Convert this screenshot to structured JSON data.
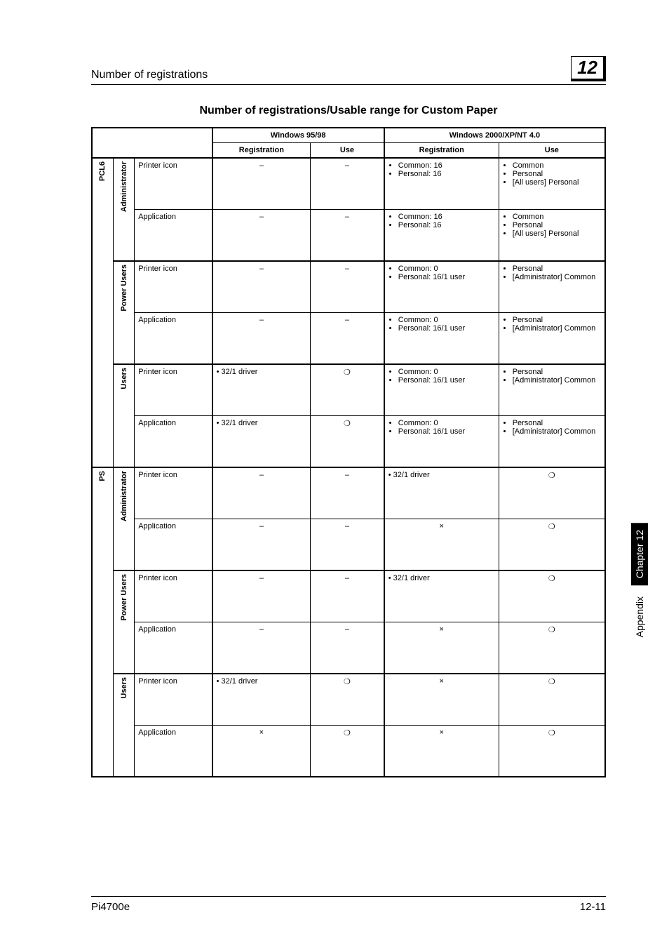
{
  "header": {
    "title": "Number of registrations",
    "badge": "12"
  },
  "section_title": "Number of registrations/Usable range for Custom Paper",
  "columns": {
    "win95": "Windows 95/98",
    "win2000": "Windows 2000/XP/NT 4.0",
    "registration": "Registration",
    "use": "Use"
  },
  "drivers": {
    "pcl6": "PCL6",
    "ps": "PS"
  },
  "roles": {
    "admin": "Administrator",
    "power": "Power Users",
    "users": "Users"
  },
  "items": {
    "printer_icon": "Printer icon",
    "application": "Application"
  },
  "marks": {
    "dash": "–",
    "circle": "❍",
    "cross": "×",
    "dot321": "• 32/1 driver"
  },
  "reg": {
    "common16_personal16": [
      "Common: 16",
      "Personal: 16"
    ],
    "common0_personal_161user": [
      "Common: 0",
      "Personal: 16/1 user"
    ],
    "driver321": "• 32/1 driver"
  },
  "use_lists": {
    "common_personal_allusers_personal": [
      "Common",
      "Personal",
      "[All users] Personal"
    ],
    "personal_admin_common": [
      "Personal",
      "[Administrator] Common"
    ]
  },
  "side": {
    "chapter": "Chapter 12",
    "appendix": "Appendix"
  },
  "footer": {
    "left": "Pi4700e",
    "right": "12-11"
  }
}
